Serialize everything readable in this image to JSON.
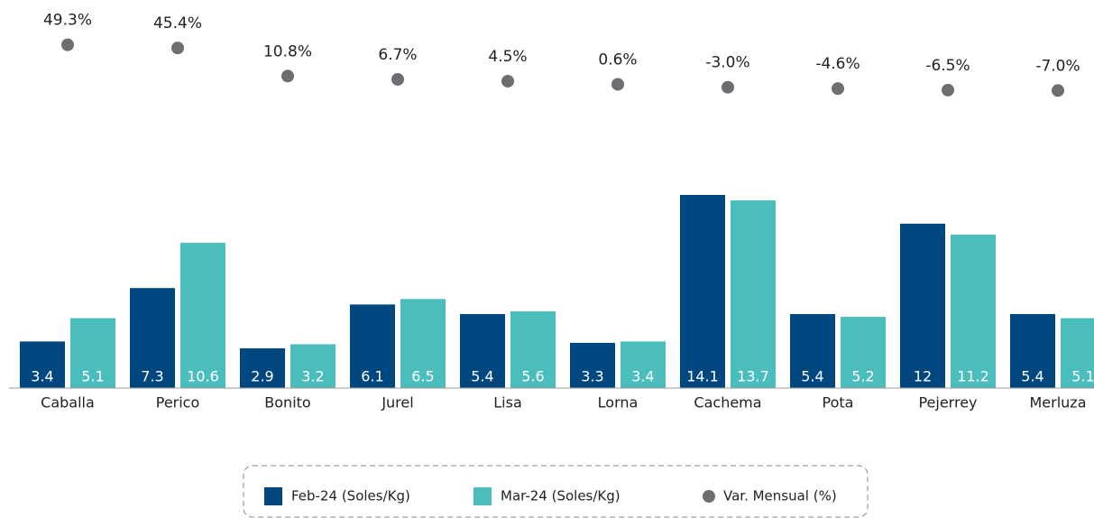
{
  "chart_data": {
    "type": "bar_dot",
    "categories": [
      "Caballa",
      "Perico",
      "Bonito",
      "Jurel",
      "Lisa",
      "Lorna",
      "Cachema",
      "Pota",
      "Pejerrey",
      "Merluza"
    ],
    "series": [
      {
        "name": "Feb-24 (Soles/Kg)",
        "color": "#00477f",
        "values": [
          3.4,
          7.3,
          2.9,
          6.1,
          5.4,
          3.3,
          14.1,
          5.4,
          12.0,
          5.4
        ]
      },
      {
        "name": "Mar-24 (Soles/Kg)",
        "color": "#4cbdbd",
        "values": [
          5.1,
          10.6,
          3.2,
          6.5,
          5.6,
          3.4,
          13.7,
          5.2,
          11.2,
          5.1
        ]
      },
      {
        "name": "Var. Mensual (%)",
        "color": "#6d6e71",
        "axis": "y2",
        "values": [
          49.3,
          45.4,
          10.8,
          6.7,
          4.5,
          0.6,
          -3.0,
          -4.6,
          -6.5,
          -7.0
        ],
        "value_labels": [
          "49.3%",
          "45.4%",
          "10.8%",
          "6.7%",
          "4.5%",
          "0.6%",
          "-3.0%",
          "-4.6%",
          "-6.5%",
          "-7.0%"
        ]
      }
    ],
    "ylim": [
      0,
      28
    ],
    "y2lim": [
      -40,
      60
    ]
  }
}
